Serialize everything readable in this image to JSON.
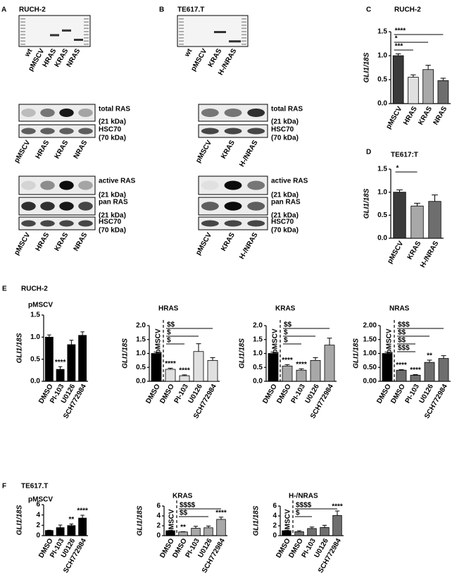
{
  "panel_letters": [
    "A",
    "B",
    "C",
    "D",
    "E",
    "F"
  ],
  "group_titles": [
    "RUCH-2",
    "TE617.T"
  ],
  "blots": {
    "A": {
      "title": "RUCH-2",
      "gel_lanes": [
        "wt",
        "pMSCV",
        "HRAS",
        "KRAS",
        "NRAS"
      ],
      "lanes": [
        "pMSCV",
        "HRAS",
        "KRAS",
        "NRAS"
      ],
      "group1": [
        {
          "name": "total RAS",
          "size": "(21 kDa)"
        },
        {
          "name": "HSC70",
          "size": "(70 kDa)"
        }
      ],
      "group2": [
        {
          "name": "active RAS",
          "size": "(21 kDa)"
        },
        {
          "name": "pan RAS",
          "size": "(21 kDa)"
        },
        {
          "name": "HSC70",
          "size": "(70 kDa)"
        }
      ]
    },
    "B": {
      "title": "TE617.T",
      "gel_lanes": [
        "wt",
        "pMSCV",
        "KRAS",
        "H-/NRAS"
      ],
      "lanes": [
        "pMSCV",
        "KRAS",
        "H-/NRAS"
      ],
      "group1": [
        {
          "name": "total RAS",
          "size": "(21 kDa)"
        },
        {
          "name": "HSC70",
          "size": "(70 kDa)"
        }
      ],
      "group2": [
        {
          "name": "active RAS",
          "size": "(21 kDa)"
        },
        {
          "name": "pan RAS",
          "size": "(21 kDa)"
        },
        {
          "name": "HSC70",
          "size": "(70 kDa)"
        }
      ]
    }
  },
  "chart_data": [
    {
      "type": "bar",
      "title": "RUCH-2",
      "ylabel": "GLI1/18S",
      "categories": [
        "pMSCV",
        "HRAS",
        "KRAS",
        "NRAS"
      ],
      "values": [
        1.0,
        0.55,
        0.71,
        0.48
      ],
      "errors": [
        0.04,
        0.05,
        0.09,
        0.05
      ],
      "colors": [
        "#3a3a3a",
        "#e0e0e0",
        "#a8a8a8",
        "#6e6e6e"
      ],
      "ylim": [
        0,
        1.5
      ],
      "yticks": [
        {
          "value": 0,
          "label": "0.0"
        },
        {
          "value": 0.5,
          "label": "0.5"
        },
        {
          "value": 1,
          "label": "1.0"
        },
        {
          "value": 1.5,
          "label": "1.5"
        }
      ],
      "annotations": [
        null,
        null,
        null,
        null
      ],
      "comparisons": [
        {
          "label": "****",
          "from": 0,
          "to": 3
        },
        {
          "label": "*",
          "from": 0,
          "to": 2
        },
        {
          "label": "***",
          "from": 0,
          "to": 1
        }
      ]
    },
    {
      "type": "bar",
      "title": "TE617:T",
      "ylabel": "GLI1/18S",
      "categories": [
        "pMSCV",
        "KRAS",
        "H-/NRAS"
      ],
      "values": [
        1.0,
        0.7,
        0.8
      ],
      "errors": [
        0.05,
        0.06,
        0.14
      ],
      "colors": [
        "#3a3a3a",
        "#a8a8a8",
        "#6e6e6e"
      ],
      "ylim": [
        0,
        1.5
      ],
      "yticks": [
        {
          "value": 0,
          "label": "0.0"
        },
        {
          "value": 0.5,
          "label": "0.5"
        },
        {
          "value": 1,
          "label": "1.0"
        },
        {
          "value": 1.5,
          "label": "1.5"
        }
      ],
      "annotations": [
        null,
        null,
        null
      ],
      "comparisons": [
        {
          "label": "*",
          "from": 0,
          "to": 1
        }
      ]
    },
    {
      "type": "bar",
      "title": "pMSCV",
      "ylabel": "GLI1/18S",
      "categories": [
        "DMSO",
        "PI-103",
        "U0126",
        "SCH772984"
      ],
      "values": [
        1.0,
        0.27,
        0.83,
        1.04
      ],
      "errors": [
        0.05,
        0.06,
        0.1,
        0.08
      ],
      "colors": [
        "#000000",
        "#000000",
        "#000000",
        "#000000"
      ],
      "ylim": [
        0,
        1.5
      ],
      "yticks": [
        {
          "value": 0,
          "label": "0.0"
        },
        {
          "value": 0.5,
          "label": "0.5"
        },
        {
          "value": 1,
          "label": "1.0"
        },
        {
          "value": 1.5,
          "label": "1.5"
        }
      ],
      "annotations": [
        null,
        "****",
        null,
        null
      ],
      "comparisons": []
    },
    {
      "type": "bar",
      "title": "HRAS",
      "ylabel": "GLI1/18S",
      "reference_label": "pMSCV",
      "categories": [
        "DMSO",
        "DMSO",
        "PI-103",
        "U0126",
        "SCH772984"
      ],
      "values": [
        1.0,
        0.43,
        0.2,
        1.07,
        0.75
      ],
      "errors": [
        0.05,
        0.04,
        0.03,
        0.28,
        0.1
      ],
      "colors": [
        "#000000",
        "#e0e0e0",
        "#e0e0e0",
        "#e0e0e0",
        "#e0e0e0"
      ],
      "ylim": [
        0,
        2
      ],
      "yticks": [
        {
          "value": 0,
          "label": "0.0"
        },
        {
          "value": 0.5,
          "label": "0.5"
        },
        {
          "value": 1,
          "label": "1.0"
        },
        {
          "value": 1.5,
          "label": "1.5"
        },
        {
          "value": 2,
          "label": "2.0"
        }
      ],
      "annotations": [
        null,
        "****",
        "****",
        null,
        null
      ],
      "comparisons": [
        {
          "label": "$$",
          "from": 1,
          "to": 4
        },
        {
          "label": "$",
          "from": 1,
          "to": 3
        },
        {
          "label": "$",
          "from": 1,
          "to": 2
        }
      ]
    },
    {
      "type": "bar",
      "title": "KRAS",
      "ylabel": "GLI1/18S",
      "reference_label": "pMSCV",
      "categories": [
        "DMSO",
        "DMSO",
        "PI-103",
        "U0126",
        "SCH772984"
      ],
      "values": [
        1.0,
        0.55,
        0.4,
        0.75,
        1.3
      ],
      "errors": [
        0.05,
        0.05,
        0.05,
        0.1,
        0.25
      ],
      "colors": [
        "#000000",
        "#a8a8a8",
        "#a8a8a8",
        "#a8a8a8",
        "#a8a8a8"
      ],
      "ylim": [
        0,
        2
      ],
      "yticks": [
        {
          "value": 0,
          "label": "0.0"
        },
        {
          "value": 0.5,
          "label": "0.5"
        },
        {
          "value": 1,
          "label": "1.0"
        },
        {
          "value": 1.5,
          "label": "1.5"
        },
        {
          "value": 2,
          "label": "2.0"
        }
      ],
      "annotations": [
        null,
        "****",
        "****",
        null,
        null
      ],
      "comparisons": [
        {
          "label": "$$",
          "from": 1,
          "to": 4
        },
        {
          "label": "$",
          "from": 1,
          "to": 3
        },
        {
          "label": "$",
          "from": 1,
          "to": 2
        }
      ]
    },
    {
      "type": "bar",
      "title": "NRAS",
      "ylabel": "GLI1/18S",
      "reference_label": "pMSCV",
      "categories": [
        "DMSO",
        "DMSO",
        "PI-103",
        "U0126",
        "SCH772984"
      ],
      "values": [
        1.0,
        0.4,
        0.22,
        0.68,
        0.82
      ],
      "errors": [
        0.05,
        0.02,
        0.02,
        0.08,
        0.1
      ],
      "colors": [
        "#000000",
        "#6e6e6e",
        "#6e6e6e",
        "#6e6e6e",
        "#6e6e6e"
      ],
      "ylim": [
        0,
        2
      ],
      "yticks": [
        {
          "value": 0,
          "label": "0.00"
        },
        {
          "value": 0.5,
          "label": "0.50"
        },
        {
          "value": 1,
          "label": "1.00"
        },
        {
          "value": 1.5,
          "label": "1.50"
        },
        {
          "value": 2,
          "label": "2.00"
        }
      ],
      "annotations": [
        null,
        "****",
        "****",
        "**",
        null
      ],
      "comparisons": [
        {
          "label": "$$$",
          "from": 1,
          "to": 4
        },
        {
          "label": "$$",
          "from": 1,
          "to": 3
        },
        {
          "label": "$$",
          "from": 1,
          "to": 2
        },
        {
          "label": "$$$",
          "from": 1,
          "to": 2
        }
      ]
    },
    {
      "type": "bar",
      "title": "pMSCV",
      "ylabel": "GLI1/18S",
      "categories": [
        "DMSO",
        "PI-103",
        "U0126",
        "SCH772984"
      ],
      "values": [
        1.0,
        1.55,
        1.95,
        3.4
      ],
      "errors": [
        0.05,
        0.5,
        0.3,
        0.55
      ],
      "colors": [
        "#000000",
        "#000000",
        "#000000",
        "#000000"
      ],
      "ylim": [
        0,
        6
      ],
      "yticks": [
        0,
        2,
        4,
        6
      ],
      "annotations": [
        null,
        null,
        "**",
        "****"
      ],
      "comparisons": []
    },
    {
      "type": "bar",
      "title": "KRAS",
      "ylabel": "GLI1/18S",
      "reference_label": "pMSCV",
      "categories": [
        "DMSO",
        "DMSO",
        "PI-103",
        "U0126",
        "SCH772984"
      ],
      "values": [
        1.0,
        0.75,
        1.5,
        1.6,
        3.3
      ],
      "errors": [
        0.05,
        0.05,
        0.4,
        0.35,
        0.45
      ],
      "colors": [
        "#000000",
        "#a8a8a8",
        "#a8a8a8",
        "#a8a8a8",
        "#a8a8a8"
      ],
      "ylim": [
        0,
        6
      ],
      "yticks": [
        0,
        2,
        4,
        6
      ],
      "annotations": [
        null,
        "**",
        null,
        null,
        "****"
      ],
      "comparisons": [
        {
          "label": "$$$$",
          "from": 1,
          "to": 4
        },
        {
          "label": "$$",
          "from": 1,
          "to": 3
        }
      ]
    },
    {
      "type": "bar",
      "title": "H-/NRAS",
      "ylabel": "GLI1/18S",
      "reference_label": "pMSCV",
      "categories": [
        "DMSO",
        "DMSO",
        "PI-103",
        "U0126",
        "SCH772984"
      ],
      "values": [
        1.0,
        0.8,
        1.45,
        1.65,
        4.1
      ],
      "errors": [
        0.05,
        0.2,
        0.3,
        0.45,
        0.9
      ],
      "colors": [
        "#000000",
        "#6e6e6e",
        "#6e6e6e",
        "#6e6e6e",
        "#6e6e6e"
      ],
      "ylim": [
        0,
        6
      ],
      "yticks": [
        0,
        2,
        4,
        6
      ],
      "annotations": [
        null,
        null,
        null,
        null,
        "****"
      ],
      "comparisons": [
        {
          "label": "$$$$",
          "from": 1,
          "to": 4
        },
        {
          "label": "$",
          "from": 1,
          "to": 2
        }
      ]
    }
  ]
}
